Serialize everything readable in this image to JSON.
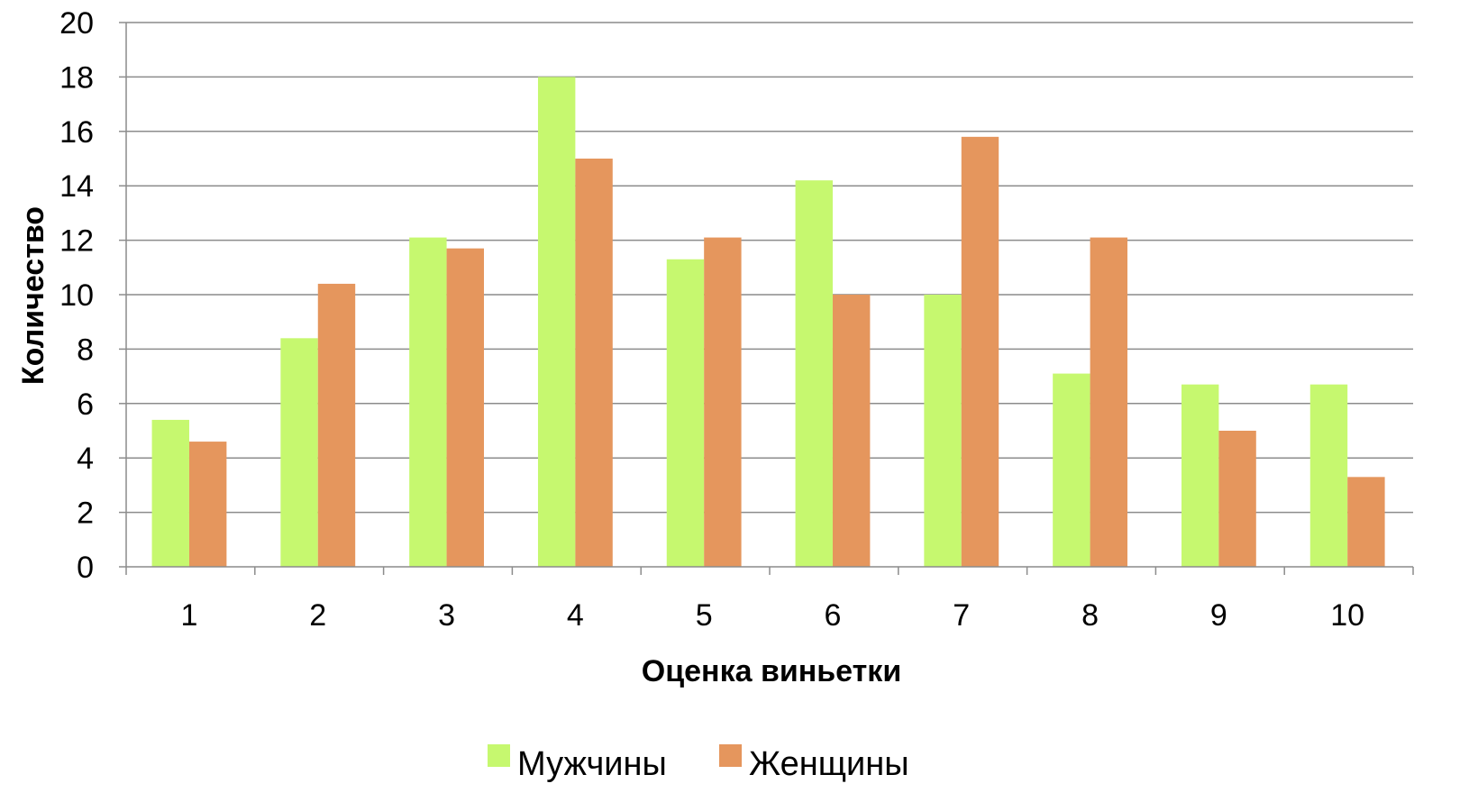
{
  "chart_data": {
    "type": "bar",
    "xlabel": "Оценка виньетки",
    "ylabel": "Количество",
    "categories": [
      "1",
      "2",
      "3",
      "4",
      "5",
      "6",
      "7",
      "8",
      "9",
      "10"
    ],
    "ylim": [
      0,
      20
    ],
    "yticks": [
      0,
      2,
      4,
      6,
      8,
      10,
      12,
      14,
      16,
      18,
      20
    ],
    "grid": true,
    "legend_position": "bottom",
    "series": [
      {
        "name": "Мужчины",
        "color": "#c6f86f",
        "values": [
          5.4,
          8.4,
          12.1,
          18.0,
          11.3,
          14.2,
          10.0,
          7.1,
          6.7,
          6.7
        ]
      },
      {
        "name": "Женщины",
        "color": "#e5965d",
        "values": [
          4.6,
          10.4,
          11.7,
          15.0,
          12.1,
          10.0,
          15.8,
          12.1,
          5.0,
          3.3
        ]
      }
    ]
  }
}
